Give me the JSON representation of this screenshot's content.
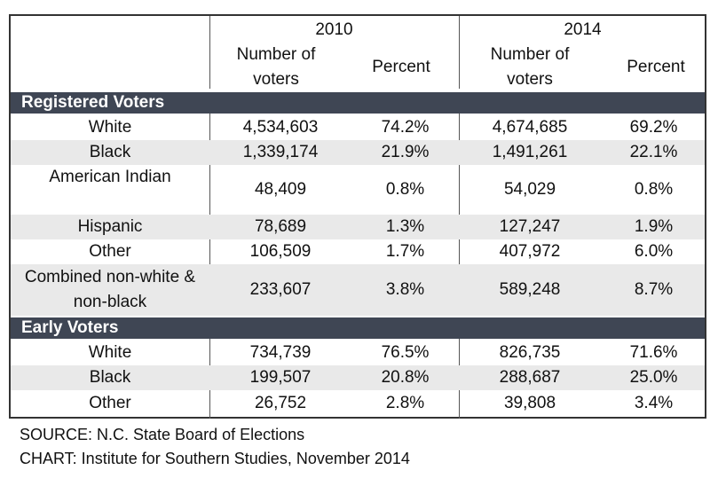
{
  "header": {
    "year_a": "2010",
    "year_b": "2014",
    "col_number": "Number of voters",
    "col_percent": "Percent"
  },
  "registered": {
    "title": "Registered Voters",
    "rows": [
      {
        "label": "White",
        "n2010": "4,534,603",
        "p2010": "74.2%",
        "n2014": "4,674,685",
        "p2014": "69.2%"
      },
      {
        "label": "Black",
        "n2010": "1,339,174",
        "p2010": "21.9%",
        "n2014": "1,491,261",
        "p2014": "22.1%"
      },
      {
        "label": "American Indian",
        "n2010": "48,409",
        "p2010": "0.8%",
        "n2014": "54,029",
        "p2014": "0.8%"
      },
      {
        "label": "Hispanic",
        "n2010": "78,689",
        "p2010": "1.3%",
        "n2014": "127,247",
        "p2014": "1.9%"
      },
      {
        "label": "Other",
        "n2010": "106,509",
        "p2010": "1.7%",
        "n2014": "407,972",
        "p2014": "6.0%"
      },
      {
        "label": "Combined non-white & non-black",
        "n2010": "233,607",
        "p2010": "3.8%",
        "n2014": "589,248",
        "p2014": "8.7%"
      }
    ]
  },
  "early": {
    "title": "Early Voters",
    "rows": [
      {
        "label": "White",
        "n2010": "734,739",
        "p2010": "76.5%",
        "n2014": "826,735",
        "p2014": "71.6%"
      },
      {
        "label": "Black",
        "n2010": "199,507",
        "p2010": "20.8%",
        "n2014": "288,687",
        "p2014": "25.0%"
      },
      {
        "label": "Other",
        "n2010": "26,752",
        "p2010": "2.8%",
        "n2014": "39,808",
        "p2014": "3.4%"
      }
    ]
  },
  "footer": {
    "source": "SOURCE: N.C. State Board of Elections",
    "chart": "CHART: Institute for Southern Studies, November 2014"
  }
}
